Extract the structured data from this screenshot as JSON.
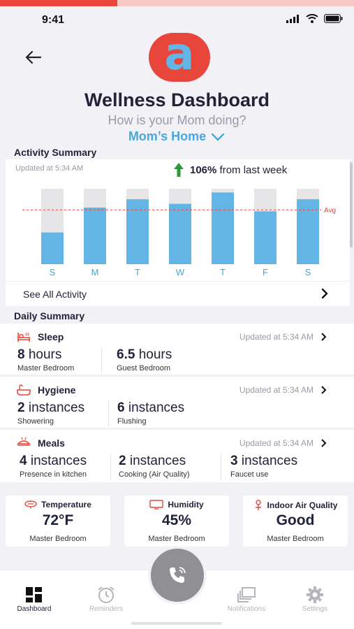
{
  "colors": {
    "accent": "#4aa6db",
    "bar": "#62b5e5",
    "bar_bg": "#e6e6e8",
    "logo": "#e8463a",
    "avg_line": "#e8463a",
    "up_arrow": "#2e9a3a"
  },
  "status_bar": {
    "time": "9:41"
  },
  "logo_letter": "a",
  "header": {
    "title": "Wellness Dashboard",
    "subtitle": "How is your Mom doing?",
    "home_selector": "Mom’s Home"
  },
  "activity": {
    "section_title": "Activity Summary",
    "updated": "Updated at 5:34 AM",
    "change_value": "106%",
    "change_text": "from last week",
    "avg_label": "Avg",
    "see_all": "See All Activity"
  },
  "chart_data": {
    "type": "bar",
    "categories": [
      "S",
      "M",
      "T",
      "W",
      "T",
      "F",
      "S"
    ],
    "values": [
      42,
      75,
      86,
      80,
      95,
      70,
      86
    ],
    "ylim": [
      0,
      100
    ],
    "avg": 72,
    "xlabel": "",
    "ylabel": ""
  },
  "daily": {
    "section_title": "Daily Summary",
    "cards": [
      {
        "title": "Sleep",
        "icon": "bed-icon",
        "updated": "Updated at 5:34 AM",
        "metrics": [
          {
            "num": "8",
            "unit": "hours",
            "label": "Master Bedroom"
          },
          {
            "num": "6.5",
            "unit": "hours",
            "label": "Guest Bedroom"
          }
        ]
      },
      {
        "title": "Hygiene",
        "icon": "bathtub-icon",
        "updated": "Updated at 5:34 AM",
        "metrics": [
          {
            "num": "2",
            "unit": "instances",
            "label": "Showering"
          },
          {
            "num": "6",
            "unit": "instances",
            "label": "Flushing"
          }
        ]
      },
      {
        "title": "Meals",
        "icon": "meal-icon",
        "updated": "Updated at 5:34 AM",
        "metrics": [
          {
            "num": "4",
            "unit": "instances",
            "label": "Presence in kitchen"
          },
          {
            "num": "2",
            "unit": "instances",
            "label": "Cooking (Air Quality)"
          },
          {
            "num": "3",
            "unit": "instances",
            "label": "Faucet use"
          }
        ]
      }
    ]
  },
  "environment": [
    {
      "title": "Temperature",
      "value": "72°F",
      "location": "Master Bedroom",
      "icon": "thermostat-icon"
    },
    {
      "title": "Humidity",
      "value": "45%",
      "location": "Master Bedroom",
      "icon": "monitor-icon"
    },
    {
      "title": "Indoor Air Quality",
      "value": "Good",
      "location": "Master Bedroom",
      "icon": "air-quality-icon"
    }
  ],
  "tabs": [
    {
      "label": "Dashboard",
      "icon": "dashboard-icon",
      "active": true
    },
    {
      "label": "Reminders",
      "icon": "alarm-clock-icon",
      "active": false
    },
    {
      "label": "Notifications",
      "icon": "notifications-icon",
      "active": false
    },
    {
      "label": "Settings",
      "icon": "gear-icon",
      "active": false
    }
  ]
}
